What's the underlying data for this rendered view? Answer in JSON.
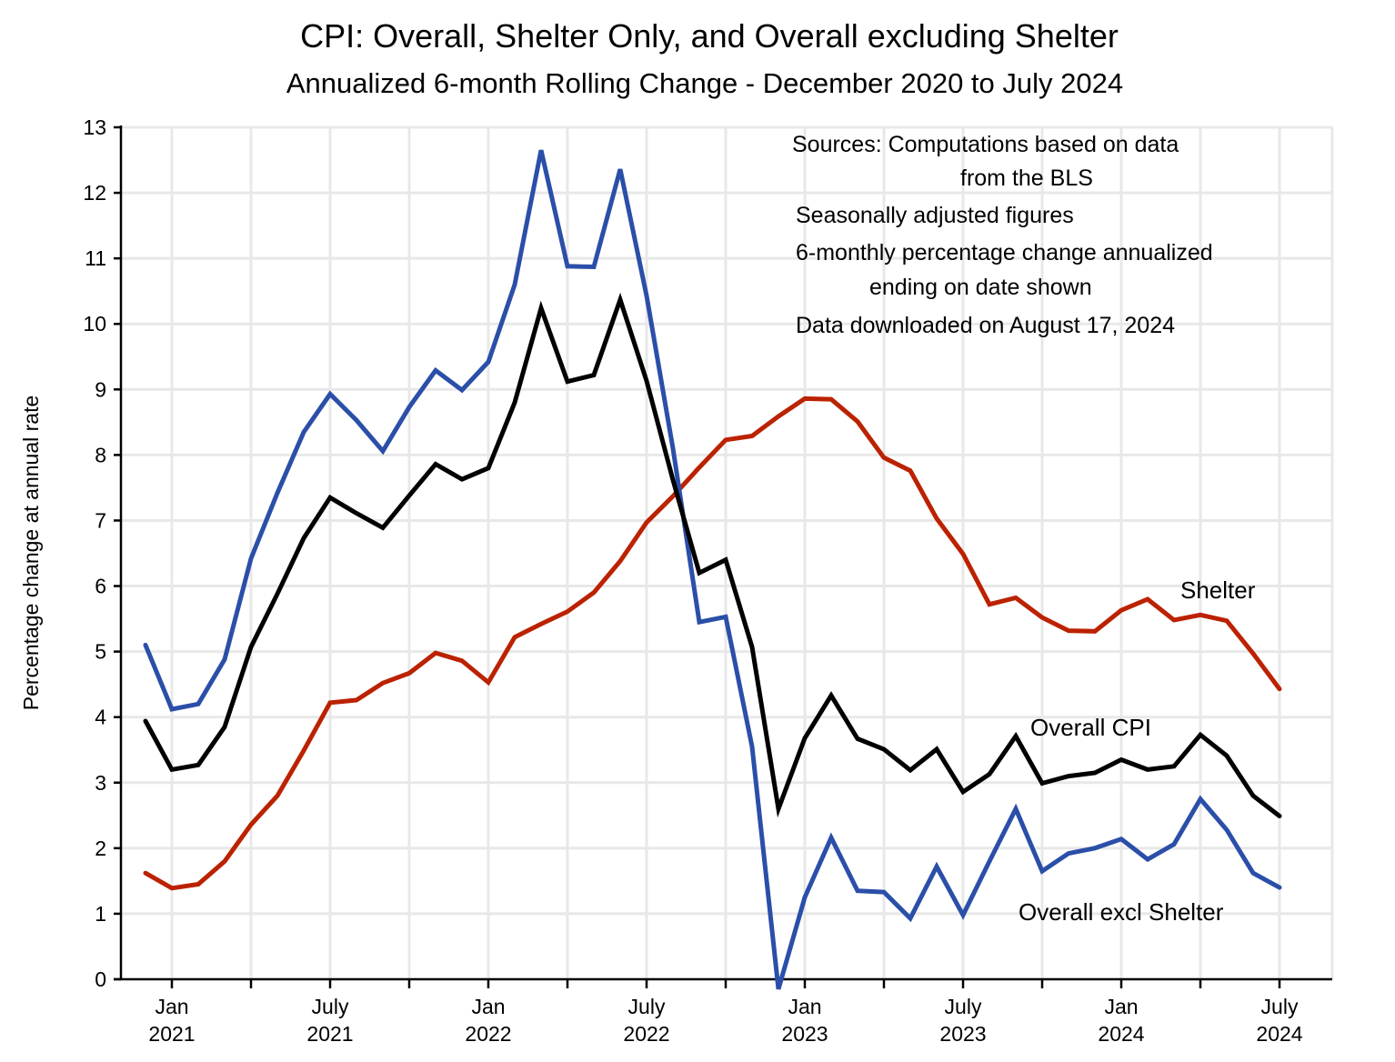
{
  "chart_data": {
    "type": "line",
    "title": "CPI:  Overall, Shelter Only, and Overall excluding Shelter",
    "subtitle": "Annualized 6-month Rolling Change - December 2020 to July 2024",
    "xlabel": "",
    "ylabel": "Percentage change at annual rate",
    "ylim": [
      0,
      13
    ],
    "yticks": [
      "0",
      "1",
      "2",
      "3",
      "4",
      "5",
      "6",
      "7",
      "8",
      "9",
      "10",
      "11",
      "12",
      "13"
    ],
    "grid": true,
    "legend": "inline labels",
    "x_months": [
      "Dec 2020",
      "Jan 2021",
      "Feb 2021",
      "Mar 2021",
      "Apr 2021",
      "May 2021",
      "Jun 2021",
      "Jul 2021",
      "Aug 2021",
      "Sep 2021",
      "Oct 2021",
      "Nov 2021",
      "Dec 2021",
      "Jan 2022",
      "Feb 2022",
      "Mar 2022",
      "Apr 2022",
      "May 2022",
      "Jun 2022",
      "Jul 2022",
      "Aug 2022",
      "Sep 2022",
      "Oct 2022",
      "Nov 2022",
      "Dec 2022",
      "Jan 2023",
      "Feb 2023",
      "Mar 2023",
      "Apr 2023",
      "May 2023",
      "Jun 2023",
      "Jul 2023",
      "Aug 2023",
      "Sep 2023",
      "Oct 2023",
      "Nov 2023",
      "Dec 2023",
      "Jan 2024",
      "Feb 2024",
      "Mar 2024",
      "Apr 2024",
      "May 2024",
      "Jun 2024",
      "Jul 2024"
    ],
    "xticks": [
      {
        "line1": "Jan",
        "line2": "2021"
      },
      {
        "line1": "July",
        "line2": "2021"
      },
      {
        "line1": "Jan",
        "line2": "2022"
      },
      {
        "line1": "July",
        "line2": "2022"
      },
      {
        "line1": "Jan",
        "line2": "2023"
      },
      {
        "line1": "July",
        "line2": "2023"
      },
      {
        "line1": "Jan",
        "line2": "2024"
      },
      {
        "line1": "July",
        "line2": "2024"
      }
    ],
    "series": [
      {
        "name": "Overall excl Shelter",
        "label": "Overall excl Shelter",
        "color": "#2b4fa8",
        "values": [
          5.1,
          4.12,
          4.2,
          4.88,
          6.42,
          7.42,
          8.35,
          8.93,
          8.53,
          8.06,
          8.73,
          9.29,
          8.99,
          9.42,
          10.6,
          12.65,
          10.88,
          10.87,
          12.36,
          10.43,
          8.1,
          5.45,
          5.53,
          3.55,
          -0.15,
          1.25,
          2.16,
          1.35,
          1.33,
          0.93,
          1.72,
          0.98,
          1.8,
          2.6,
          1.65,
          1.92,
          2.0,
          2.14,
          1.83,
          2.06,
          2.75,
          2.28,
          1.62,
          1.4
        ]
      },
      {
        "name": "Overall CPI",
        "label": "Overall CPI",
        "color": "#000000",
        "values": [
          3.94,
          3.2,
          3.27,
          3.85,
          5.07,
          5.88,
          6.73,
          7.35,
          7.11,
          6.89,
          7.38,
          7.86,
          7.63,
          7.8,
          8.8,
          10.24,
          9.12,
          9.22,
          10.37,
          9.13,
          7.62,
          6.2,
          6.4,
          5.07,
          2.6,
          3.68,
          4.33,
          3.67,
          3.51,
          3.19,
          3.51,
          2.86,
          3.13,
          3.71,
          2.99,
          3.1,
          3.15,
          3.35,
          3.2,
          3.25,
          3.73,
          3.41,
          2.8,
          2.49
        ]
      },
      {
        "name": "Shelter",
        "label": "Shelter",
        "color": "#bb2200",
        "values": [
          1.62,
          1.39,
          1.45,
          1.8,
          2.36,
          2.8,
          3.49,
          4.22,
          4.26,
          4.52,
          4.67,
          4.98,
          4.86,
          4.53,
          5.22,
          5.42,
          5.61,
          5.9,
          6.38,
          6.97,
          7.37,
          7.81,
          8.23,
          8.29,
          8.59,
          8.86,
          8.85,
          8.51,
          7.96,
          7.76,
          7.03,
          6.49,
          5.72,
          5.82,
          5.52,
          5.32,
          5.31,
          5.63,
          5.8,
          5.48,
          5.56,
          5.47,
          4.97,
          4.43
        ]
      }
    ],
    "annotations": [
      "Sources:  Computations based on data",
      "from the BLS",
      "Seasonally adjusted figures",
      "6-monthly percentage change annualized",
      "ending on date shown",
      "Data downloaded on August 17, 2024"
    ]
  }
}
